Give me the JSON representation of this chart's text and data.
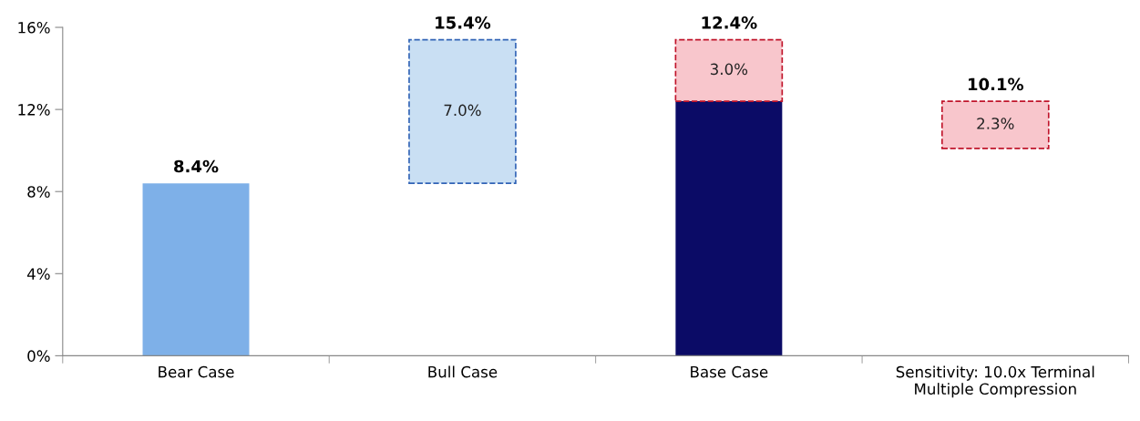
{
  "chart_data": {
    "type": "bar",
    "categories": [
      "Bear Case",
      "Bull Case",
      "Base Case",
      "Sensitivity: 10.0x Terminal\nMultiple Compression"
    ],
    "series": [
      {
        "colors": [
          "#7eb0e8",
          null,
          "#0b0b66",
          null
        ],
        "values": [
          8.4,
          null,
          12.4,
          null
        ],
        "base": [
          0,
          null,
          0,
          null
        ],
        "line_style": "solid"
      },
      {
        "color": "#c9dff3",
        "values": [
          null,
          7.0,
          null,
          null
        ],
        "base": [
          null,
          8.4,
          null,
          null
        ],
        "line_style": "dashed",
        "value_labels": [
          null,
          "7.0%",
          null,
          null
        ]
      },
      {
        "color": "#f8c6cc",
        "values": [
          null,
          null,
          3.0,
          2.3
        ],
        "base": [
          null,
          null,
          12.4,
          10.1
        ],
        "line_style": "dashed",
        "value_labels": [
          null,
          null,
          "3.0%",
          "2.3%"
        ]
      }
    ],
    "annotations": [
      {
        "text": "8.4%",
        "x": "Bear Case",
        "y": 8.4
      },
      {
        "text": "15.4%",
        "x": "Bull Case",
        "y": 15.4
      },
      {
        "text": "12.4%",
        "x": "Base Case",
        "y": 15.4
      },
      {
        "text": "10.1%",
        "x": "Sensitivity: 10.0x Terminal\nMultiple Compression",
        "y": 12.4
      }
    ],
    "ylim": [
      0,
      16
    ],
    "yticks": [
      {
        "value": 0,
        "label": "0%"
      },
      {
        "value": 4,
        "label": "4%"
      },
      {
        "value": 8,
        "label": "8%"
      },
      {
        "value": 12,
        "label": "12%"
      },
      {
        "value": 16,
        "label": "16%"
      }
    ],
    "grid": false,
    "legend": false
  }
}
